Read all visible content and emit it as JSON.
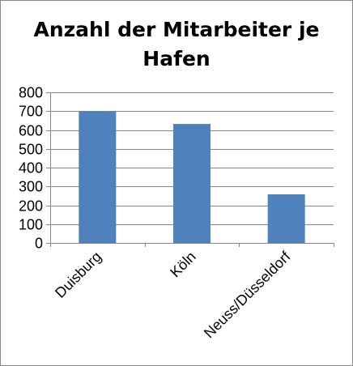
{
  "chart_data": {
    "type": "bar",
    "title_lines": [
      "Anzahl der Mitarbeiter je",
      "Hafen"
    ],
    "categories": [
      "Duisburg",
      "Köln",
      "Neuss/Düsseldorf"
    ],
    "values": [
      700,
      632,
      258
    ],
    "ylim": [
      0,
      800
    ],
    "yticks": [
      "0",
      "100",
      "200",
      "300",
      "400",
      "500",
      "600",
      "700",
      "800"
    ],
    "grid": true,
    "legend": "none",
    "colors": {
      "bar": "#4F81BD",
      "grid": "#878787",
      "axis": "#868686",
      "frame": "#868686"
    }
  }
}
